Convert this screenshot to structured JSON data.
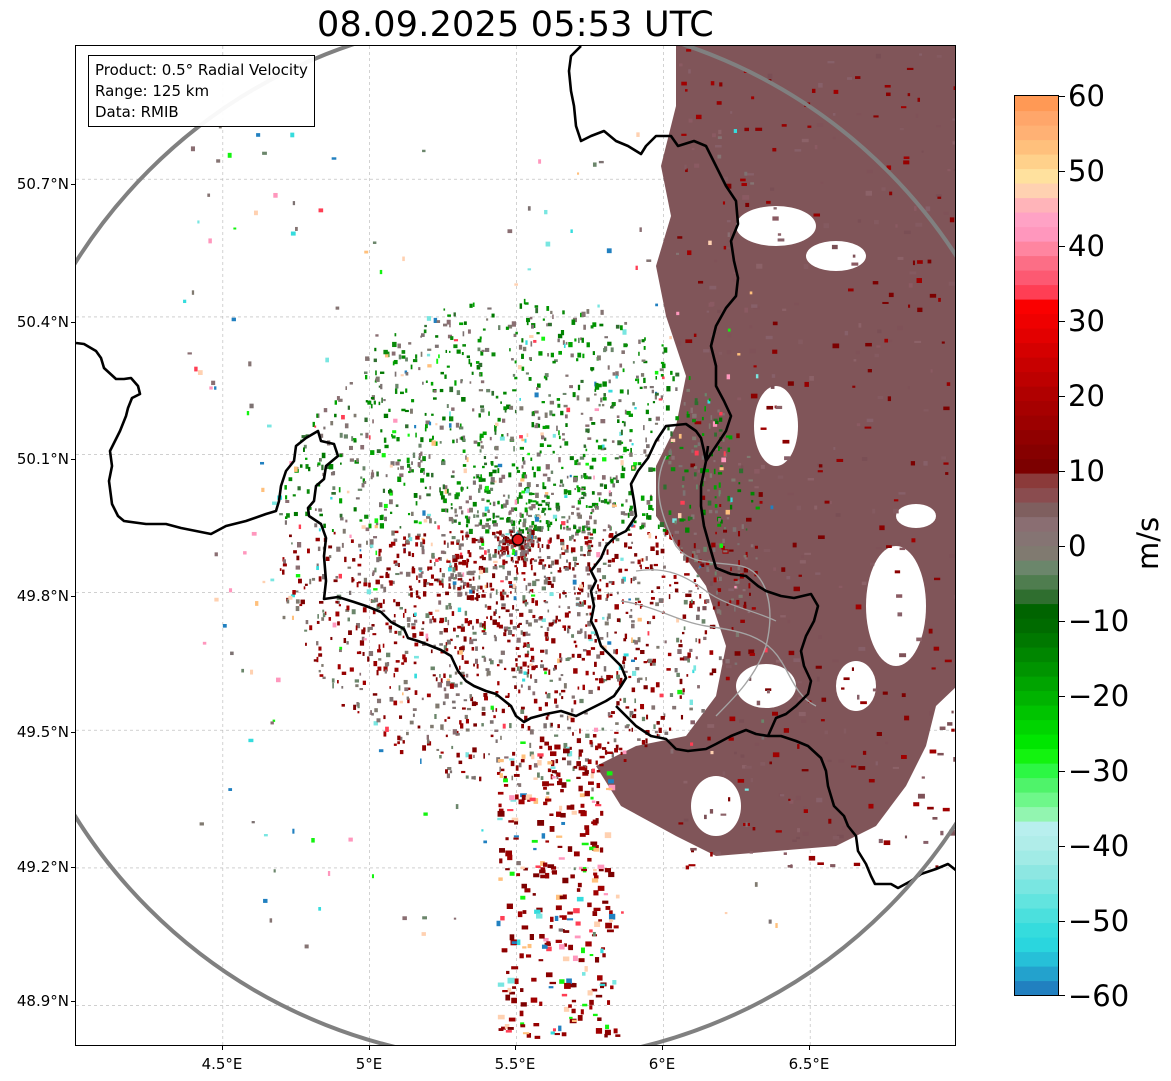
{
  "title": "08.09.2025 05:53 UTC",
  "info_box": {
    "product": "Product: 0.5° Radial Velocity",
    "range": "Range: 125 km",
    "data": "Data: RMIB"
  },
  "lat_ticks": [
    "50.7°N",
    "50.4°N",
    "50.1°N",
    "49.8°N",
    "49.5°N",
    "49.2°N",
    "48.9°N"
  ],
  "lon_ticks": [
    "4.5°E",
    "5°E",
    "5.5°E",
    "6°E",
    "6.5°E"
  ],
  "map": {
    "lat_range": [
      48.81,
      50.99
    ],
    "lon_range": [
      4.0,
      7.0
    ],
    "radar_site": {
      "lat": 49.915,
      "lon": 5.505
    },
    "range_ring_color": "#808080",
    "border_color": "#000000",
    "river_color": "#9e9e9e",
    "grid": true
  },
  "colorbar": {
    "label": "m/s",
    "min": -60,
    "max": 60,
    "ticks": [
      "60",
      "50",
      "40",
      "30",
      "20",
      "10",
      "0",
      "−10",
      "−20",
      "−30",
      "−40",
      "−50",
      "−60"
    ],
    "colors": [
      "#2180c0",
      "#23a2cd",
      "#26c0d8",
      "#2ad6de",
      "#35dcdd",
      "#4be0dd",
      "#62e4df",
      "#79e6e1",
      "#8de7e2",
      "#a1ebe6",
      "#b0ede9",
      "#b8efee",
      "#92f5b0",
      "#6ef78a",
      "#4ff36a",
      "#2cf744",
      "#13f30f",
      "#00e600",
      "#00d500",
      "#00c400",
      "#00b300",
      "#00a400",
      "#009400",
      "#008600",
      "#007800",
      "#006b00",
      "#006400",
      "#2f6e2f",
      "#4f7d4f",
      "#6b866b",
      "#807a70",
      "#857473",
      "#8a6e72",
      "#7f5f5f",
      "#8a4c4f",
      "#8b3a3a",
      "#7c0000",
      "#860000",
      "#900000",
      "#9c0000",
      "#a60000",
      "#b00000",
      "#bd0000",
      "#c80000",
      "#d50000",
      "#e30000",
      "#ef0000",
      "#fa0000",
      "#ff3e54",
      "#fd5972",
      "#fc6e86",
      "#ff85a0",
      "#ff97bd",
      "#ffa2c5",
      "#ffb4b9",
      "#ffd1b1",
      "#ffe19e",
      "#ffd18b",
      "#ffc07c",
      "#ffb174",
      "#ffa66a",
      "#ff9955"
    ]
  }
}
